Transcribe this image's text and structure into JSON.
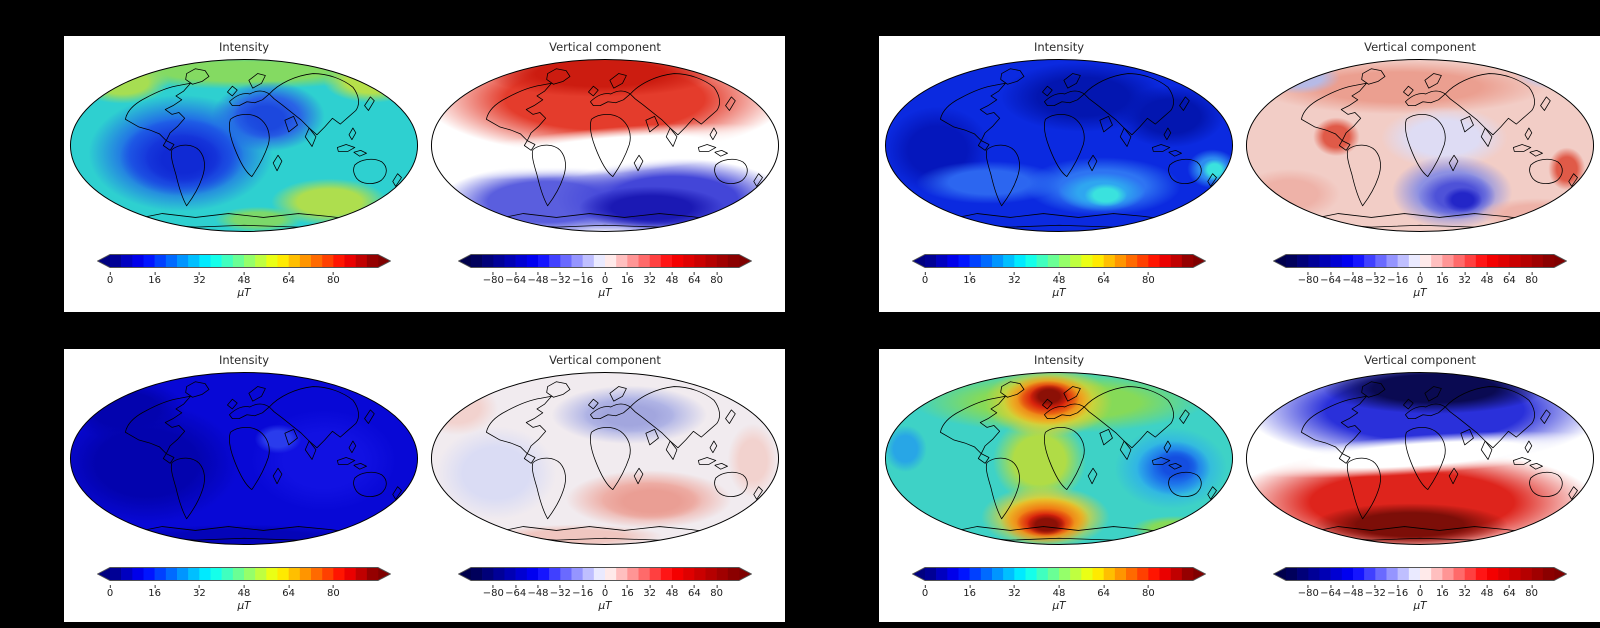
{
  "colors": {
    "figure_background": "#000000",
    "panel_background": "#ffffff",
    "title_text": "#2b2b2b",
    "tick_text": "#1a1a1a"
  },
  "chart_data": {
    "type": "heatmap",
    "subtype": "global-field-maps",
    "projection": "mollweide",
    "grid": "2x2 panels, each panel has an Intensity map (jet colormap) and a Vertical component map (seismic colormap) with horizontal colorbars in microtesla",
    "unit": "µT",
    "colorbars": {
      "intensity": {
        "colormap": "jet",
        "range": [
          0,
          96
        ],
        "segments": 24,
        "extend": "both",
        "unit": "µT",
        "stops": [
          [
            0,
            "#000080"
          ],
          [
            0.125,
            "#0000ff"
          ],
          [
            0.375,
            "#00ffff"
          ],
          [
            0.625,
            "#ffff00"
          ],
          [
            0.875,
            "#ff0000"
          ],
          [
            1,
            "#800000"
          ]
        ],
        "ticks": [
          {
            "v": 0,
            "label": "0"
          },
          {
            "v": 16,
            "label": "16"
          },
          {
            "v": 32,
            "label": "32"
          },
          {
            "v": 48,
            "label": "48"
          },
          {
            "v": 64,
            "label": "64"
          },
          {
            "v": 80,
            "label": "80"
          }
        ]
      },
      "vertical": {
        "colormap": "seismic",
        "range": [
          -96,
          96
        ],
        "segments": 24,
        "extend": "both",
        "unit": "µT",
        "stops": [
          [
            0,
            "#00004c"
          ],
          [
            0.25,
            "#0000ff"
          ],
          [
            0.5,
            "#ffffff"
          ],
          [
            0.75,
            "#ff0000"
          ],
          [
            1,
            "#800000"
          ]
        ],
        "ticks": [
          {
            "v": -80,
            "label": "−80"
          },
          {
            "v": -64,
            "label": "−64"
          },
          {
            "v": -48,
            "label": "−48"
          },
          {
            "v": -32,
            "label": "−32"
          },
          {
            "v": -16,
            "label": "−16"
          },
          {
            "v": 0,
            "label": "0"
          },
          {
            "v": 16,
            "label": "16"
          },
          {
            "v": 32,
            "label": "32"
          },
          {
            "v": 48,
            "label": "48"
          },
          {
            "v": 64,
            "label": "64"
          },
          {
            "v": 80,
            "label": "80"
          }
        ]
      }
    },
    "panels": [
      {
        "position": "top-left",
        "maps": [
          {
            "title": "Intensity",
            "colormap": "jet",
            "pattern": "moderate field ~30-60 µT; low over South America/South Atlantic, secondary low over Europe/North Africa, higher green-yellow values near NW, NE and SE edges",
            "base": "#2ed0d0",
            "blobs": [
              [
                180,
                14,
                150,
                18,
                "#84da62"
              ],
              [
                55,
                25,
                48,
                22,
                "#a6de52"
              ],
              [
                312,
                24,
                50,
                22,
                "#b6e04a"
              ],
              [
                205,
                60,
                58,
                36,
                "#2a62e6"
              ],
              [
                202,
                62,
                34,
                22,
                "#1c48de"
              ],
              [
                115,
                98,
                95,
                60,
                "#2064e8"
              ],
              [
                116,
                102,
                64,
                40,
                "#1638dc"
              ],
              [
                118,
                104,
                40,
                26,
                "#102ad4"
              ],
              [
                268,
                148,
                60,
                24,
                "#aede4e"
              ],
              [
                195,
                166,
                45,
                13,
                "#7cd86a"
              ]
            ]
          },
          {
            "title": "Vertical component",
            "colormap": "seismic",
            "pattern": "normal dipole: positive (red, up to ~+80 µT) in northern hemisphere, white band near equator, negative (blue, to ~−80 µT) in southern hemisphere",
            "base": "#ffffff",
            "blobs": [
              [
                180,
                42,
                186,
                58,
                "#e43c2c"
              ],
              [
                175,
                16,
                120,
                24,
                "#cc1c10"
              ],
              [
                120,
                148,
                110,
                38,
                "#5a5ede"
              ],
              [
                250,
                145,
                120,
                42,
                "#4346d8"
              ],
              [
                228,
                154,
                75,
                22,
                "#1b19b4"
              ],
              [
                180,
                96,
                190,
                24,
                "#ffffff",
                -5
              ]
            ]
          }
        ]
      },
      {
        "position": "top-right",
        "maps": [
          {
            "title": "Intensity",
            "colormap": "jet",
            "pattern": "weak field, mostly ~10-20 µT blue; cyan maximum in south Indian Ocean and small cyan spot at far east edge",
            "base": "#0b2ae0",
            "blobs": [
              [
                205,
                40,
                85,
                36,
                "#0316b0"
              ],
              [
                295,
                60,
                55,
                32,
                "#0316b0"
              ],
              [
                55,
                95,
                55,
                45,
                "#0517bc"
              ],
              [
                108,
                128,
                75,
                22,
                "#2c66f0"
              ],
              [
                225,
                132,
                80,
                30,
                "#2e74f2"
              ],
              [
                224,
                138,
                45,
                20,
                "#2fa6f0"
              ],
              [
                228,
                141,
                22,
                12,
                "#3ae2de"
              ],
              [
                338,
                114,
                26,
                20,
                "#2e8cf0"
              ],
              [
                340,
                115,
                13,
                11,
                "#3ae2de"
              ]
            ]
          },
          {
            "title": "Vertical component",
            "colormap": "seismic",
            "pattern": "weak mixed polarity: pale red over most of globe, red patches near Caribbean and New Zealand, blue minimum south of Africa, pale blue near NW and NE edges",
            "base": "#f2cdc6",
            "blobs": [
              [
                160,
                30,
                150,
                28,
                "#eb9f90"
              ],
              [
                56,
                20,
                42,
                17,
                "#b6bae6"
              ],
              [
                316,
                17,
                38,
                15,
                "#c4c8ea"
              ],
              [
                205,
                82,
                65,
                32,
                "#dedcf4"
              ],
              [
                94,
                81,
                24,
                20,
                "#e05a48"
              ],
              [
                331,
                114,
                19,
                22,
                "#e05a48"
              ],
              [
                213,
                138,
                62,
                38,
                "#8c90e2"
              ],
              [
                218,
                142,
                40,
                24,
                "#4e52d8"
              ],
              [
                224,
                146,
                20,
                13,
                "#2326c8"
              ],
              [
                46,
                140,
                52,
                26,
                "#eeb2a8"
              ],
              [
                300,
                160,
                60,
                16,
                "#eeb2a8"
              ]
            ]
          }
        ]
      },
      {
        "position": "bottom-left",
        "maps": [
          {
            "title": "Intensity",
            "colormap": "jet",
            "pattern": "very weak field, nearly uniform dark blue ~5-10 µT; slightly darker western hemisphere, slightly brighter spot near Arabia",
            "base": "#0808d6",
            "blobs": [
              [
                80,
                95,
                95,
                62,
                "#0303ae"
              ],
              [
                58,
                40,
                62,
                32,
                "#0303ae"
              ],
              [
                262,
                92,
                75,
                52,
                "#1111e2"
              ],
              [
                215,
                70,
                24,
                15,
                "#2a3cec"
              ],
              [
                180,
                170,
                120,
                12,
                "#0404b8"
              ]
            ]
          },
          {
            "title": "Vertical component",
            "colormap": "seismic",
            "pattern": "near zero everywhere: faint negative (pale blue) over Europe/Russia and SW, faint positive (pale pink) over south Indian Ocean/Australia",
            "base": "#f1ebef",
            "blobs": [
              [
                205,
                45,
                80,
                30,
                "#b2b6e6"
              ],
              [
                205,
                46,
                48,
                18,
                "#a2a6de"
              ],
              [
                225,
                132,
                85,
                30,
                "#eeb0a8"
              ],
              [
                228,
                134,
                52,
                20,
                "#ea9e94"
              ],
              [
                68,
                105,
                62,
                48,
                "#dadcf4"
              ],
              [
                28,
                38,
                42,
                28,
                "#f2d2ce"
              ],
              [
                332,
                92,
                26,
                38,
                "#f2d2ce"
              ],
              [
                150,
                170,
                90,
                12,
                "#f0c6c0"
              ]
            ]
          }
        ]
      },
      {
        "position": "bottom-right",
        "maps": [
          {
            "title": "Intensity",
            "colormap": "jet",
            "pattern": "strong non-dipolar field: dark-red maxima (>80 µT) over North Atlantic/Greenland and south of South America, blue minima over SE Asia and west edge, cyan-green elsewhere",
            "base": "#3ed2c6",
            "blobs": [
              [
                180,
                32,
                150,
                32,
                "#86da58"
              ],
              [
                160,
                92,
                48,
                45,
                "#b0dc46"
              ],
              [
                169,
                32,
                66,
                36,
                "#e8d02e"
              ],
              [
                169,
                30,
                46,
                26,
                "#f07c14"
              ],
              [
                169,
                28,
                32,
                18,
                "#d8220c"
              ],
              [
                170,
                26,
                20,
                12,
                "#8c1006"
              ],
              [
                166,
                150,
                66,
                32,
                "#e8d02e"
              ],
              [
                166,
                154,
                46,
                24,
                "#f07c14"
              ],
              [
                166,
                156,
                30,
                15,
                "#d8220c"
              ],
              [
                167,
                158,
                20,
                11,
                "#8c1006"
              ],
              [
                295,
                100,
                58,
                42,
                "#2fb2e8"
              ],
              [
                298,
                100,
                38,
                28,
                "#1c70ea"
              ],
              [
                300,
                98,
                24,
                17,
                "#144ee0"
              ],
              [
                22,
                80,
                22,
                24,
                "#28a6e6"
              ],
              [
                300,
                162,
                45,
                13,
                "#86da58"
              ]
            ]
          },
          {
            "title": "Vertical component",
            "colormap": "seismic",
            "pattern": "reversed dipole: negative (dark blue, ~−80 µT) in northern hemisphere, white band near equator, positive (dark red, ~+80 µT) in southern hemisphere",
            "base": "#ffffff",
            "blobs": [
              [
                185,
                40,
                185,
                56,
                "#2a30da"
              ],
              [
                195,
                18,
                115,
                26,
                "#0a0a52"
              ],
              [
                172,
                135,
                190,
                55,
                "#de241c"
              ],
              [
                170,
                158,
                100,
                22,
                "#7c0e08"
              ],
              [
                180,
                86,
                195,
                20,
                "#ffffff",
                -4
              ]
            ]
          }
        ]
      }
    ]
  }
}
